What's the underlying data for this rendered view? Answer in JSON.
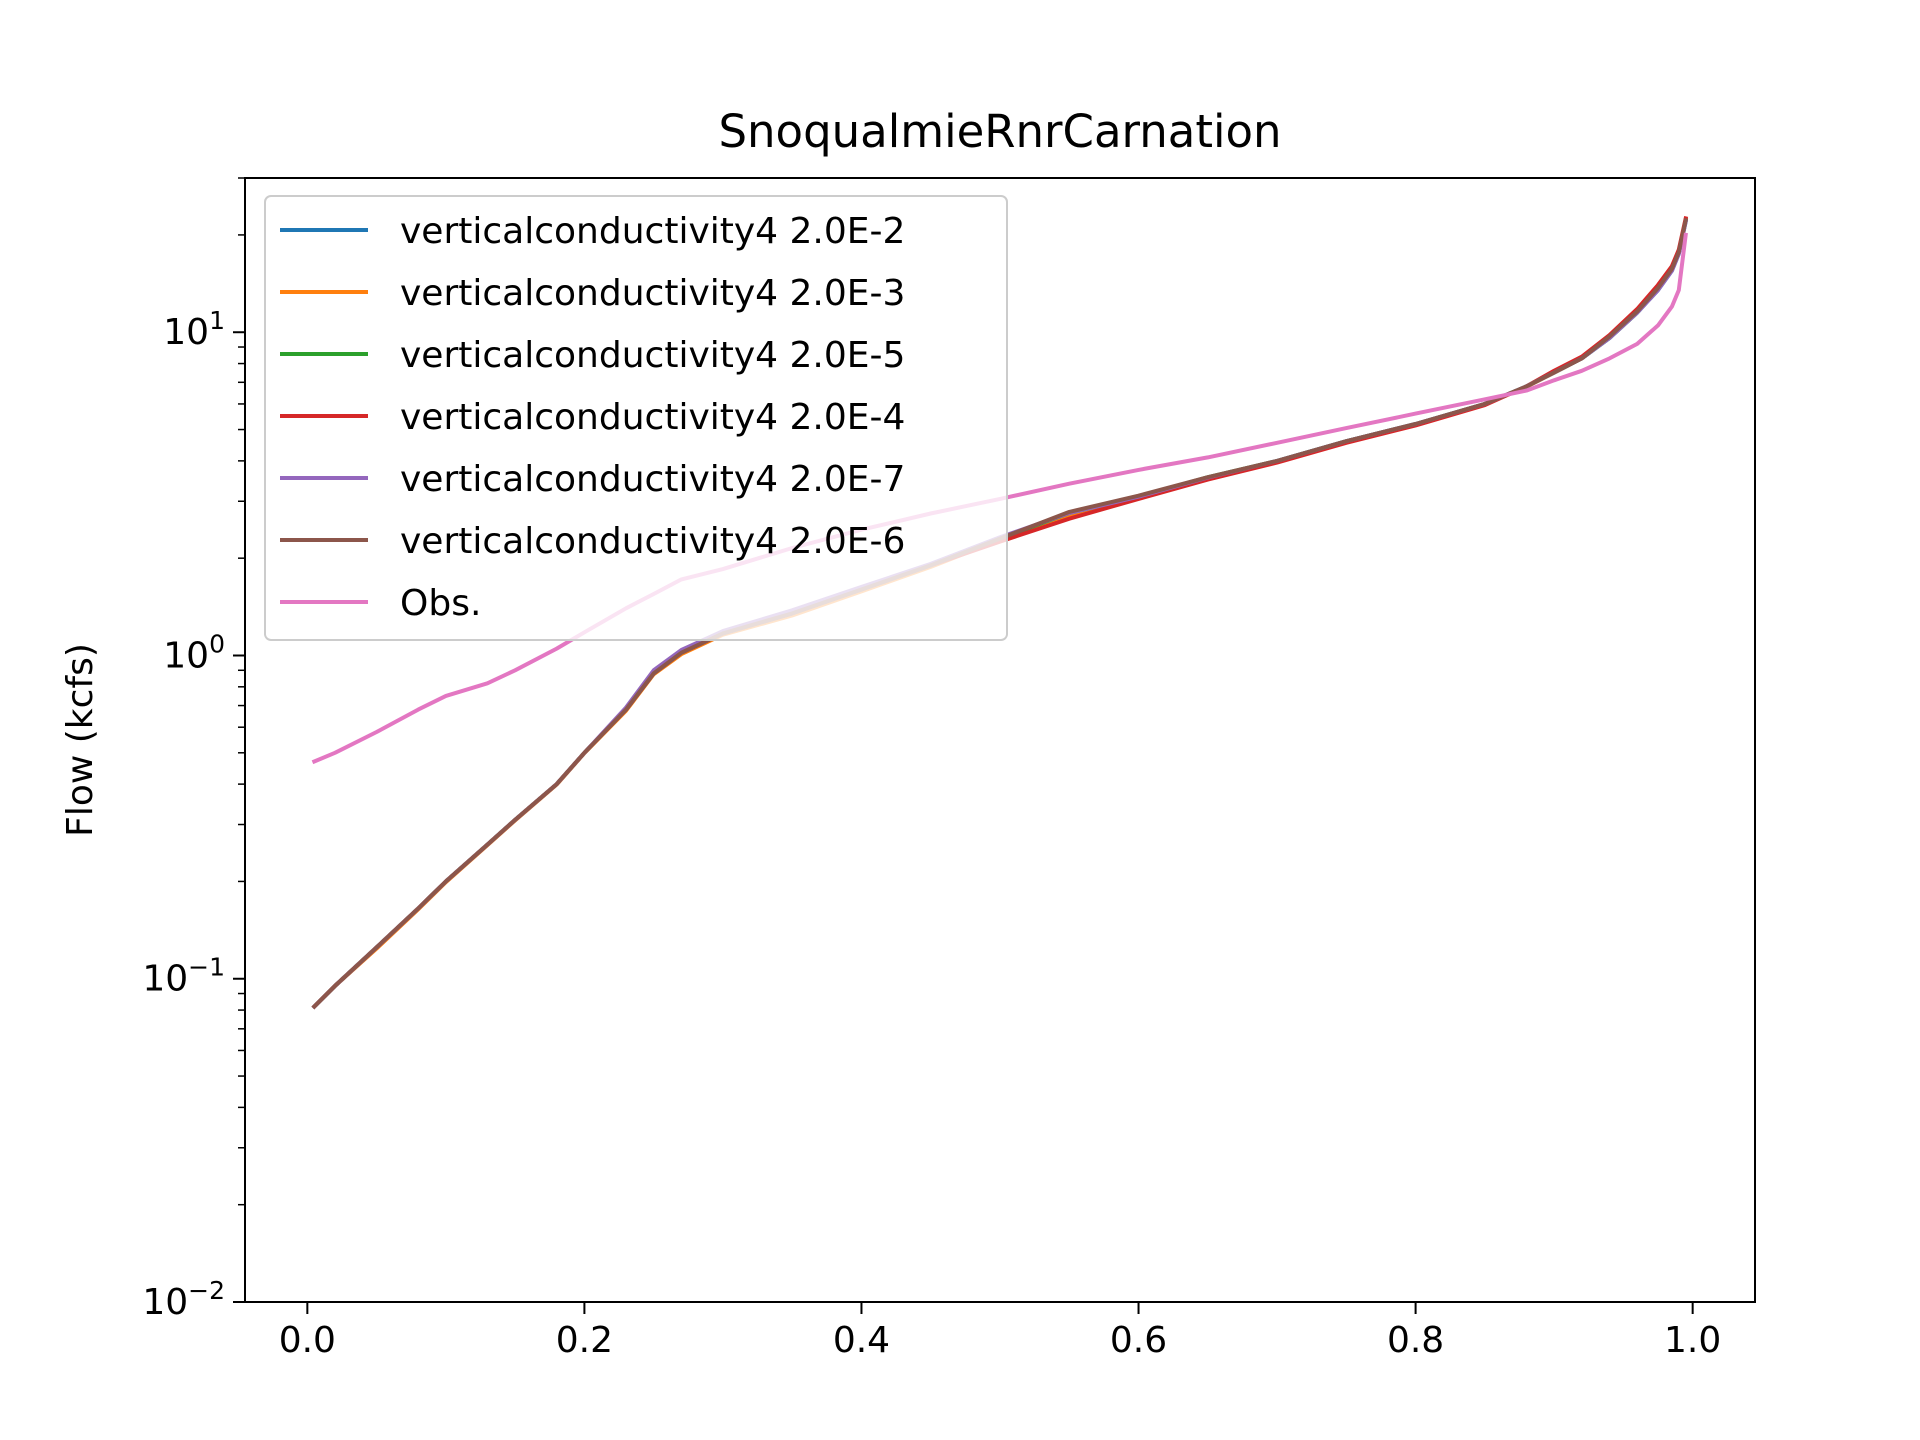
{
  "chart_data": {
    "type": "line",
    "title": "SnoqualmieRnrCarnation",
    "xlabel": "",
    "ylabel": "Flow (kcfs)",
    "xlim": [
      -0.045,
      1.045
    ],
    "ylim": [
      0.01,
      30
    ],
    "yscale": "log",
    "grid": false,
    "legend_position": "upper-left",
    "x_ticks": [
      {
        "value": 0.0,
        "label": "0.0"
      },
      {
        "value": 0.2,
        "label": "0.2"
      },
      {
        "value": 0.4,
        "label": "0.4"
      },
      {
        "value": 0.6,
        "label": "0.6"
      },
      {
        "value": 0.8,
        "label": "0.8"
      },
      {
        "value": 1.0,
        "label": "1.0"
      }
    ],
    "y_ticks": [
      {
        "value": 0.01,
        "base": "10",
        "exp": "−2"
      },
      {
        "value": 0.1,
        "base": "10",
        "exp": "−1"
      },
      {
        "value": 1,
        "base": "10",
        "exp": "0"
      },
      {
        "value": 10,
        "base": "10",
        "exp": "1"
      }
    ],
    "x": [
      0.005,
      0.02,
      0.05,
      0.08,
      0.1,
      0.13,
      0.15,
      0.18,
      0.2,
      0.23,
      0.25,
      0.27,
      0.3,
      0.35,
      0.4,
      0.45,
      0.5,
      0.55,
      0.6,
      0.65,
      0.7,
      0.75,
      0.8,
      0.85,
      0.88,
      0.9,
      0.92,
      0.94,
      0.96,
      0.975,
      0.985,
      0.99,
      0.995
    ],
    "series": [
      {
        "name": "verticalconductivity4 2.0E-2",
        "color": "#1f77b4",
        "values": [
          0.082,
          0.095,
          0.125,
          0.165,
          0.2,
          0.26,
          0.31,
          0.4,
          0.5,
          0.68,
          0.88,
          1.02,
          1.17,
          1.35,
          1.6,
          1.9,
          2.3,
          2.75,
          3.1,
          3.55,
          4.0,
          4.6,
          5.2,
          6.0,
          6.8,
          7.5,
          8.3,
          9.6,
          11.5,
          13.5,
          15.5,
          17.5,
          22.0
        ]
      },
      {
        "name": "verticalconductivity4 2.0E-3",
        "color": "#ff7f0e",
        "values": [
          0.082,
          0.095,
          0.124,
          0.164,
          0.199,
          0.259,
          0.309,
          0.399,
          0.499,
          0.675,
          0.875,
          1.01,
          1.16,
          1.33,
          1.58,
          1.88,
          2.28,
          2.72,
          3.08,
          3.52,
          3.98,
          4.58,
          5.18,
          5.98,
          6.78,
          7.5,
          8.3,
          9.7,
          11.6,
          13.8,
          15.8,
          17.8,
          22.3
        ]
      },
      {
        "name": "verticalconductivity4 2.0E-5",
        "color": "#2ca02c",
        "values": [
          0.082,
          0.095,
          0.125,
          0.165,
          0.2,
          0.26,
          0.31,
          0.4,
          0.5,
          0.68,
          0.88,
          1.02,
          1.17,
          1.35,
          1.6,
          1.9,
          2.3,
          2.76,
          3.1,
          3.56,
          4.0,
          4.6,
          5.2,
          6.0,
          6.8,
          7.5,
          8.3,
          9.6,
          11.5,
          13.6,
          15.6,
          17.6,
          22.2
        ]
      },
      {
        "name": "verticalconductivity4 2.0E-4",
        "color": "#d62728",
        "values": [
          0.082,
          0.095,
          0.125,
          0.165,
          0.2,
          0.26,
          0.31,
          0.4,
          0.5,
          0.68,
          0.88,
          1.02,
          1.17,
          1.35,
          1.6,
          1.9,
          2.25,
          2.65,
          3.05,
          3.5,
          3.95,
          4.55,
          5.15,
          5.95,
          6.8,
          7.6,
          8.4,
          9.8,
          11.8,
          14.0,
          16.0,
          18.0,
          22.5
        ]
      },
      {
        "name": "verticalconductivity4 2.0E-7",
        "color": "#9467bd",
        "values": [
          0.082,
          0.095,
          0.125,
          0.165,
          0.2,
          0.26,
          0.31,
          0.4,
          0.5,
          0.69,
          0.9,
          1.04,
          1.19,
          1.38,
          1.63,
          1.92,
          2.32,
          2.76,
          3.1,
          3.55,
          4.0,
          4.6,
          5.2,
          6.0,
          6.8,
          7.5,
          8.3,
          9.6,
          11.5,
          13.5,
          15.5,
          17.5,
          22.0
        ]
      },
      {
        "name": "verticalconductivity4 2.0E-6",
        "color": "#8c564b",
        "values": [
          0.082,
          0.095,
          0.125,
          0.165,
          0.2,
          0.26,
          0.31,
          0.4,
          0.5,
          0.68,
          0.88,
          1.02,
          1.17,
          1.35,
          1.6,
          1.9,
          2.3,
          2.78,
          3.12,
          3.56,
          4.0,
          4.6,
          5.2,
          6.0,
          6.8,
          7.5,
          8.3,
          9.7,
          11.6,
          13.7,
          15.7,
          17.7,
          22.2
        ]
      },
      {
        "name": "Obs.",
        "color": "#e377c2",
        "values": [
          0.47,
          0.5,
          0.58,
          0.68,
          0.75,
          0.82,
          0.9,
          1.05,
          1.18,
          1.4,
          1.55,
          1.72,
          1.85,
          2.15,
          2.45,
          2.75,
          3.05,
          3.4,
          3.75,
          4.1,
          4.55,
          5.05,
          5.6,
          6.2,
          6.6,
          7.1,
          7.6,
          8.3,
          9.2,
          10.5,
          12.0,
          13.5,
          20.0
        ]
      }
    ]
  }
}
